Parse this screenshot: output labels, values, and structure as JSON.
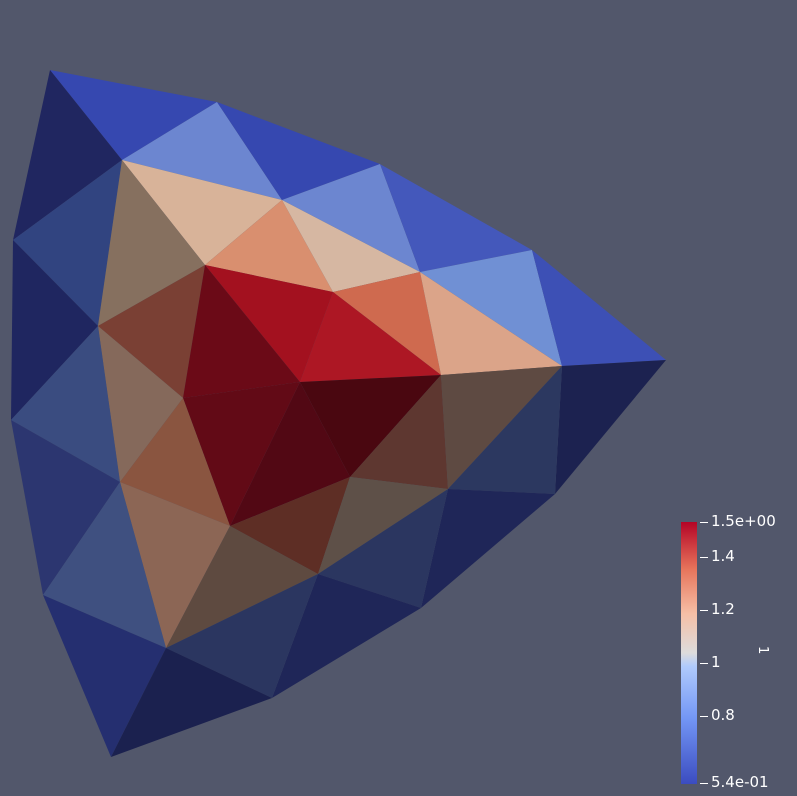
{
  "colorbar": {
    "title": "1",
    "ticks": [
      "1.5e+00",
      "1.4",
      "1.2",
      "1",
      "0.8",
      "5.4e-01"
    ],
    "range": [
      0.54,
      1.5
    ],
    "colormap": "cool-to-warm"
  },
  "colors": {
    "background": "#52576b"
  }
}
